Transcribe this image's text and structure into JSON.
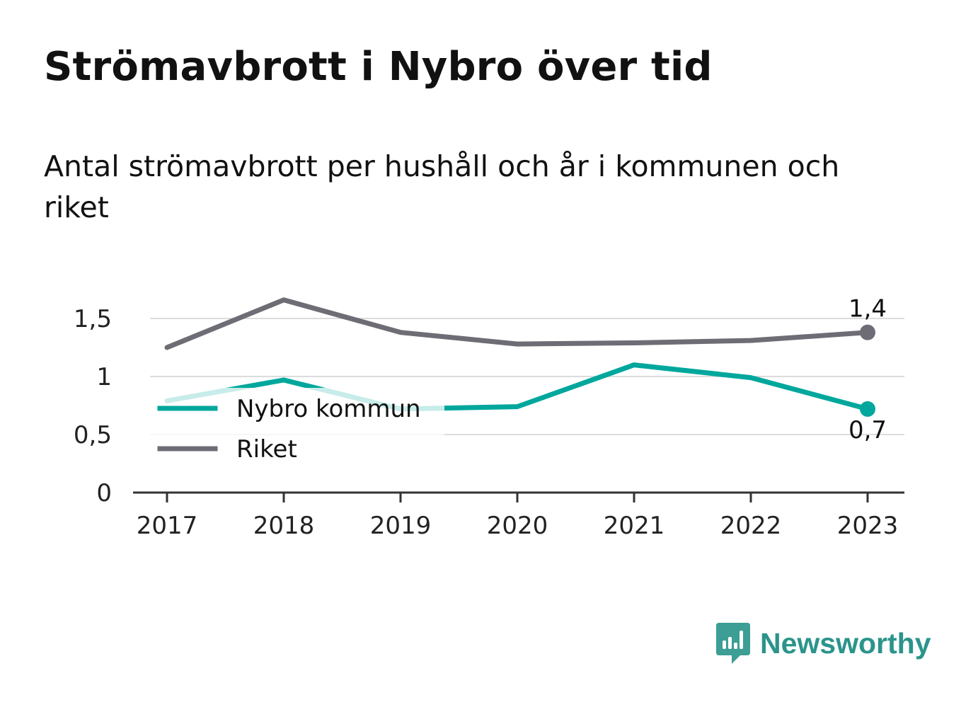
{
  "title": "Strömavbrott i Nybro över tid",
  "subtitle": "Antal strömavbrott per hushåll och år i kommunen och riket",
  "brand": {
    "name": "Newsworthy",
    "icon": "newsworthy-logo-icon",
    "color": "#2b948b"
  },
  "chart_data": {
    "type": "line",
    "title": "Strömavbrott i Nybro över tid",
    "subtitle": "Antal strömavbrott per hushåll och år i kommunen och riket",
    "xlabel": "",
    "ylabel": "",
    "categories": [
      "2017",
      "2018",
      "2019",
      "2020",
      "2021",
      "2022",
      "2023"
    ],
    "ylim": [
      0,
      1.7
    ],
    "yticks": [
      0,
      0.5,
      1,
      1.5
    ],
    "ytick_labels": [
      "0",
      "0,5",
      "1",
      "1,5"
    ],
    "grid": true,
    "legend": "bottom-left inside",
    "series": [
      {
        "name": "Nybro kommun",
        "color": "#00a79c",
        "values": [
          0.79,
          0.97,
          0.72,
          0.74,
          1.1,
          0.99,
          0.72
        ],
        "end_label": "0,7"
      },
      {
        "name": "Riket",
        "color": "#6e6d75",
        "values": [
          1.25,
          1.66,
          1.38,
          1.28,
          1.29,
          1.31,
          1.38
        ],
        "end_label": "1,4"
      }
    ]
  }
}
